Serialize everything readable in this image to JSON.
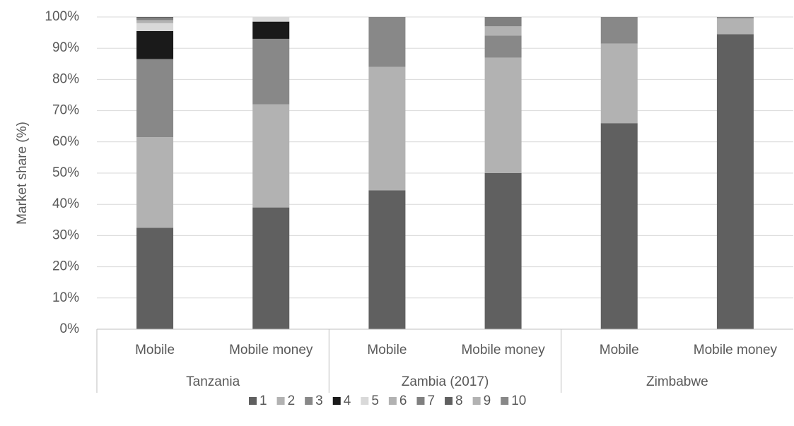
{
  "chart_data": {
    "type": "stacked_bar",
    "y_label": "Market share (%)",
    "groups": [
      {
        "name": "Tanzania",
        "categories": [
          "Mobile",
          "Mobile money"
        ]
      },
      {
        "name": "Zambia (2017)",
        "categories": [
          "Mobile",
          "Mobile money"
        ]
      },
      {
        "name": "Zimbabwe",
        "categories": [
          "Mobile",
          "Mobile money"
        ]
      }
    ],
    "ylim": [
      0,
      100
    ],
    "yticks": [
      {
        "value": 0,
        "label": "0%"
      },
      {
        "value": 10,
        "label": "10%"
      },
      {
        "value": 20,
        "label": "20%"
      },
      {
        "value": 30,
        "label": "30%"
      },
      {
        "value": 40,
        "label": "40%"
      },
      {
        "value": 50,
        "label": "50%"
      },
      {
        "value": 60,
        "label": "60%"
      },
      {
        "value": 70,
        "label": "70%"
      },
      {
        "value": 80,
        "label": "80%"
      },
      {
        "value": 90,
        "label": "90%"
      },
      {
        "value": 100,
        "label": "100%"
      }
    ],
    "grid": true,
    "legend": "bottom",
    "series": [
      {
        "name": "1",
        "color": "#606060",
        "values": [
          32.5,
          39,
          44.5,
          50,
          66,
          94.5
        ]
      },
      {
        "name": "2",
        "color": "#b2b2b2",
        "values": [
          29,
          33,
          39.5,
          37,
          25.5,
          5
        ]
      },
      {
        "name": "3",
        "color": "#888888",
        "values": [
          25,
          21,
          16,
          7,
          8.5,
          0.5
        ]
      },
      {
        "name": "4",
        "color": "#1a1a1a",
        "values": [
          9,
          5.5,
          0,
          0,
          0,
          0
        ]
      },
      {
        "name": "5",
        "color": "#d9d9d9",
        "values": [
          2.5,
          1.5,
          0,
          0,
          0,
          0
        ]
      },
      {
        "name": "6",
        "color": "#b2b2b2",
        "values": [
          1,
          0,
          0,
          3,
          0,
          0
        ]
      },
      {
        "name": "7",
        "color": "#808080",
        "values": [
          0.7,
          0,
          0,
          3,
          0,
          0
        ]
      },
      {
        "name": "8",
        "color": "#606060",
        "values": [
          0.3,
          0,
          0,
          0,
          0,
          0
        ]
      },
      {
        "name": "9",
        "color": "#b2b2b2",
        "values": [
          0,
          0,
          0,
          0,
          0,
          0
        ]
      },
      {
        "name": "10",
        "color": "#888888",
        "values": [
          0,
          0,
          0,
          0,
          0,
          0
        ]
      }
    ]
  }
}
